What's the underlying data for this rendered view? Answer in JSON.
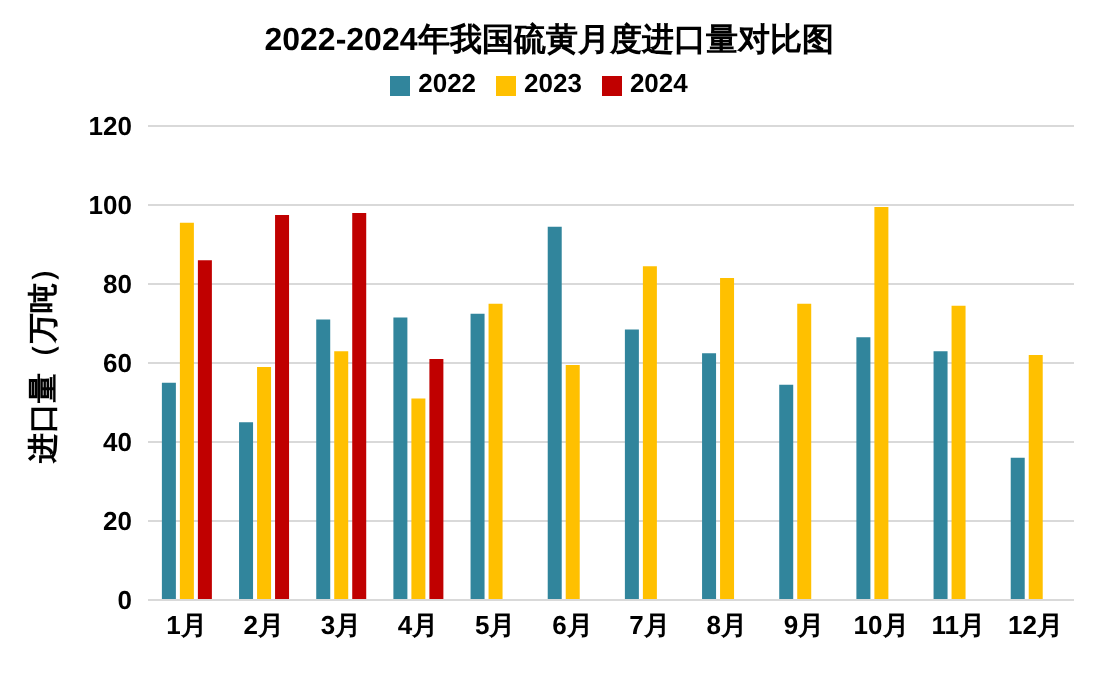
{
  "chart_data": {
    "type": "bar",
    "title": "2022-2024年我国硫黄月度进口量对比图",
    "ylabel": "进口量（万吨）",
    "categories": [
      "1月",
      "2月",
      "3月",
      "4月",
      "5月",
      "6月",
      "7月",
      "8月",
      "9月",
      "10月",
      "11月",
      "12月"
    ],
    "series": [
      {
        "name": "2022",
        "color": "#31859c",
        "values": [
          55,
          45,
          71,
          71.5,
          72.5,
          94.5,
          68.5,
          62.5,
          54.5,
          66.5,
          63,
          36
        ]
      },
      {
        "name": "2023",
        "color": "#ffc000",
        "values": [
          95.5,
          59,
          63,
          51,
          75,
          59.5,
          84.5,
          81.5,
          75,
          99.5,
          74.5,
          62
        ]
      },
      {
        "name": "2024",
        "color": "#c00000",
        "values": [
          86,
          97.5,
          98,
          61,
          null,
          null,
          null,
          null,
          null,
          null,
          null,
          null
        ]
      }
    ],
    "ylim": [
      0,
      120
    ],
    "yticks": [
      0,
      20,
      40,
      60,
      80,
      100,
      120
    ],
    "grid": "y",
    "legend": "top"
  }
}
